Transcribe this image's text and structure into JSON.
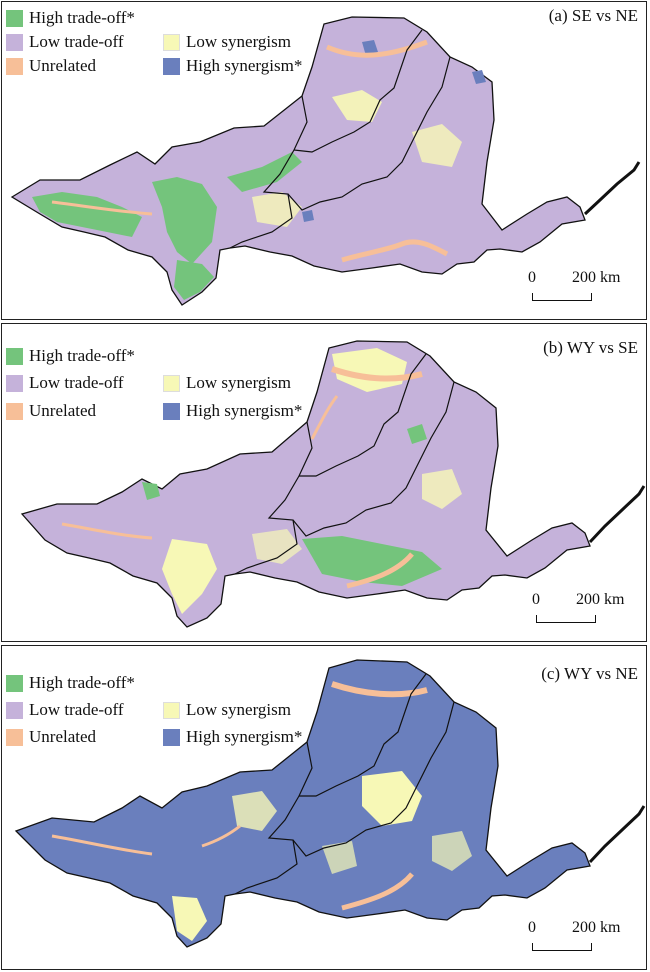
{
  "colors": {
    "high_tradeoff": "#74c47c",
    "low_tradeoff": "#c5b2da",
    "unrelated": "#f7bf98",
    "low_synergism": "#f7f8b6",
    "high_synergism": "#6a7fbd"
  },
  "legend_labels": {
    "high_tradeoff": "High trade-off*",
    "low_tradeoff": "Low trade-off",
    "unrelated": "Unrelated",
    "low_synergism": "Low synergism",
    "high_synergism": "High synergism*"
  },
  "panels": [
    {
      "title": "(a) SE vs NE",
      "base": "low_tradeoff",
      "accent": "high_tradeoff",
      "accent2": "low_synergism",
      "scale_start": "0",
      "scale_end": "200 km"
    },
    {
      "title": "(b) WY vs SE",
      "base": "low_tradeoff",
      "accent": "low_synergism",
      "accent2": "high_tradeoff",
      "scale_start": "0",
      "scale_end": "200 km"
    },
    {
      "title": "(c) WY vs NE",
      "base": "high_synergism",
      "accent": "low_synergism",
      "accent2": "high_synergism",
      "scale_start": "0",
      "scale_end": "200 km"
    }
  ]
}
